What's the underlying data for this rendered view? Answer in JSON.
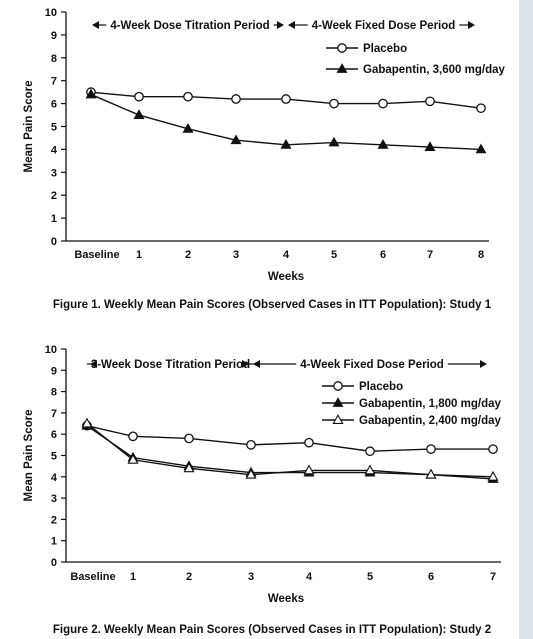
{
  "chart_data": [
    {
      "type": "line",
      "title": "Figure 1. Weekly Mean Pain Scores (Observed Cases in ITT Population): Study 1",
      "xlabel": "Weeks",
      "ylabel": "Mean Pain Score",
      "ylim": [
        0,
        10
      ],
      "yticks": [
        "0",
        "1",
        "2",
        "3",
        "4",
        "5",
        "6",
        "7",
        "8",
        "9",
        "10"
      ],
      "categories": [
        "Baseline",
        "1",
        "2",
        "3",
        "4",
        "5",
        "6",
        "7",
        "8"
      ],
      "periods": [
        {
          "label": "4-Week Dose Titration Period",
          "start": 0,
          "end": 4
        },
        {
          "label": "4-Week Fixed Dose Period",
          "start": 4,
          "end": 8
        }
      ],
      "legend_position": "top-right",
      "grid": false,
      "series": [
        {
          "name": "Placebo",
          "marker": "circle-open",
          "values": [
            6.5,
            6.3,
            6.3,
            6.2,
            6.2,
            6.0,
            6.0,
            6.1,
            5.8
          ]
        },
        {
          "name": "Gabapentin, 3,600 mg/day",
          "marker": "triangle-filled",
          "values": [
            6.4,
            5.5,
            4.9,
            4.4,
            4.2,
            4.3,
            4.2,
            4.1,
            4.0
          ]
        }
      ]
    },
    {
      "type": "line",
      "title": "Figure 2. Weekly Mean Pain Scores (Observed Cases in ITT Population): Study 2",
      "xlabel": "Weeks",
      "ylabel": "Mean Pain Score",
      "ylim": [
        0,
        10
      ],
      "yticks": [
        "0",
        "1",
        "2",
        "3",
        "4",
        "5",
        "6",
        "7",
        "8",
        "9",
        "10"
      ],
      "categories": [
        "Baseline",
        "1",
        "2",
        "3",
        "4",
        "5",
        "6",
        "7"
      ],
      "periods": [
        {
          "label": "3-Week Dose Titration Period",
          "start": 0,
          "end": 3
        },
        {
          "label": "4-Week Fixed Dose Period",
          "start": 3,
          "end": 7
        }
      ],
      "legend_position": "top-right",
      "grid": false,
      "series": [
        {
          "name": "Placebo",
          "marker": "circle-open",
          "values": [
            6.4,
            5.9,
            5.8,
            5.5,
            5.6,
            5.2,
            5.3,
            5.3
          ]
        },
        {
          "name": "Gabapentin, 1,800 mg/day",
          "marker": "triangle-filled",
          "values": [
            6.4,
            4.9,
            4.5,
            4.2,
            4.2,
            4.2,
            4.1,
            3.9
          ]
        },
        {
          "name": "Gabapentin, 2,400 mg/day",
          "marker": "triangle-open",
          "values": [
            6.5,
            4.8,
            4.4,
            4.1,
            4.3,
            4.3,
            4.1,
            4.0
          ]
        }
      ]
    }
  ]
}
